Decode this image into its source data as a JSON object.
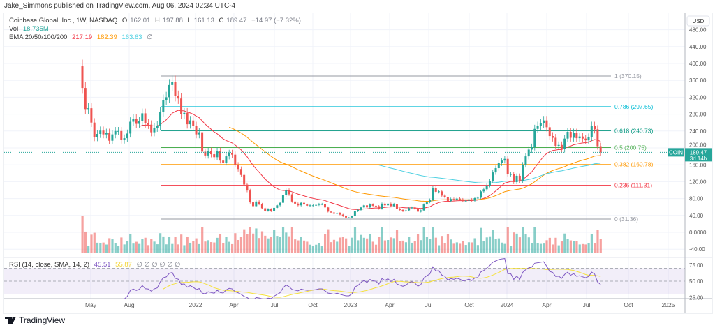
{
  "publisher_line": "Jake_Simmons published on TradingView.com, Aug 06, 2024 02:34 UTC-4",
  "legend": {
    "symbol": "Coinbase Global, Inc., 1W, NASDAQ",
    "o_label": "O",
    "open": "162.01",
    "h_label": "H",
    "high": "197.88",
    "l_label": "L",
    "low": "161.13",
    "c_label": "C",
    "close": "189.47",
    "change": "−14.97 (−7.32%)",
    "vol_label": "Vol",
    "vol": "18.735M",
    "ema_label": "EMA 20/50/100/200",
    "ema20": "217.19",
    "ema50": "182.39",
    "ema100": "163.63",
    "ema200": "∅",
    "rsi_label": "RSI (14, close, SMA, 14, 2)",
    "rsi": "45.51",
    "rsi_sma": "55.87",
    "rsi_extra": "∅ ∅ ∅ ∅ ∅ ∅"
  },
  "currency": "USD",
  "ticker_tag": "COIN",
  "last_price": "189.47",
  "countdown": "3d 14h",
  "brand": "TradingView",
  "colors": {
    "up": "#26a69a",
    "down": "#ef5350",
    "ema20": "#f23645",
    "ema50": "#ff9800",
    "ema100": "#4dd0e1",
    "rsi": "#7e57c2",
    "rsi_sma": "#f5e13b"
  },
  "chart_data": {
    "type": "candlestick",
    "interval": "1W",
    "start_week": "2021-04-16",
    "closes": [
      342,
      292,
      294,
      260,
      225,
      233,
      241,
      232,
      236,
      217,
      232,
      240,
      240,
      219,
      223,
      234,
      262,
      269,
      257,
      263,
      282,
      258,
      255,
      237,
      248,
      253,
      286,
      314,
      320,
      349,
      357,
      323,
      317,
      280,
      283,
      256,
      265,
      252,
      232,
      237,
      191,
      182,
      193,
      185,
      178,
      193,
      170,
      165,
      180,
      188,
      184,
      160,
      150,
      136,
      113,
      99,
      71,
      62,
      73,
      67,
      57,
      51,
      55,
      50,
      58,
      64,
      70,
      88,
      100,
      90,
      73,
      68,
      64,
      70,
      66,
      63,
      64,
      64,
      65,
      67,
      67,
      59,
      49,
      47,
      44,
      46,
      42,
      38,
      35,
      35,
      38,
      50,
      53,
      59,
      64,
      59,
      66,
      63,
      62,
      56,
      68,
      64,
      68,
      62,
      67,
      56,
      53,
      50,
      52,
      57,
      59,
      56,
      49,
      52,
      66,
      72,
      77,
      105,
      96,
      97,
      87,
      84,
      74,
      79,
      77,
      80,
      78,
      74,
      75,
      78,
      75,
      81,
      82,
      97,
      102,
      111,
      122,
      142,
      152,
      164,
      170,
      174,
      138,
      138,
      119,
      134,
      122,
      160,
      180,
      196,
      202,
      245,
      252,
      258,
      265,
      249,
      228,
      224,
      205,
      207,
      197,
      222,
      238,
      224,
      236,
      223,
      227,
      222,
      218,
      225,
      252,
      244,
      204,
      189.47
    ],
    "price_axis": {
      "ticks": [
        480,
        440,
        400,
        360,
        320,
        280,
        240,
        200,
        160,
        120,
        80,
        40,
        0,
        -40
      ],
      "labels": [
        "480.00",
        "440.00",
        "400.00",
        "360.00",
        "320.00",
        "280.00",
        "240.00",
        "200.00",
        "160.00",
        "120.00",
        "80.00",
        "40.00",
        "0.0000",
        "-40.00"
      ]
    },
    "rsi_axis": {
      "ticks": [
        75,
        50,
        25
      ],
      "labels": [
        "75.00",
        "50.00",
        "25.00"
      ],
      "band": [
        70,
        30
      ]
    },
    "time_axis": [
      "May",
      "Aug",
      "2022",
      "Apr",
      "Jul",
      "Oct",
      "2023",
      "Apr",
      "Jul",
      "Oct",
      "2024",
      "Apr",
      "Jul",
      "Oct",
      "2025"
    ],
    "fib_levels": [
      {
        "ratio": "1",
        "price": 370.15,
        "label": "1 (370.15)",
        "color": "#9598a1"
      },
      {
        "ratio": "0.786",
        "price": 297.65,
        "label": "0.786 (297.65)",
        "color": "#00bcd4"
      },
      {
        "ratio": "0.618",
        "price": 240.73,
        "label": "0.618 (240.73)",
        "color": "#089981"
      },
      {
        "ratio": "0.5",
        "price": 200.75,
        "label": "0.5 (200.75)",
        "color": "#4caf50"
      },
      {
        "ratio": "0.382",
        "price": 160.78,
        "label": "0.382 (160.78)",
        "color": "#ff9800"
      },
      {
        "ratio": "0.236",
        "price": 111.31,
        "label": "0.236 (111.31)",
        "color": "#f23645"
      },
      {
        "ratio": "0",
        "price": 31.36,
        "label": "0 (31.36)",
        "color": "#9598a1"
      }
    ]
  }
}
